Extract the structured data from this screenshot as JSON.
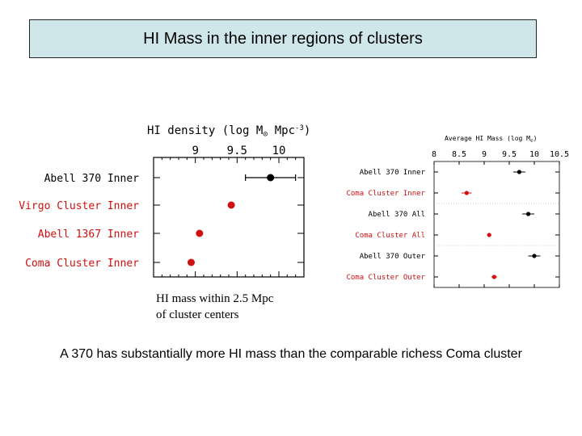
{
  "slide": {
    "title": "HI Mass in the inner regions of clusters",
    "caption_line1": "HI mass within 2.5 Mpc",
    "caption_line2": "of cluster centers",
    "conclusion": "A 370 has substantially more HI mass than the comparable richess Coma cluster"
  },
  "colors": {
    "black": "#000000",
    "red": "#d01010",
    "title_bg": "#cfe7ea"
  },
  "chart_data": [
    {
      "type": "scatter",
      "xlabel_parts": [
        "HI density  (log M",
        "⊙",
        "  Mpc",
        "-3",
        ")"
      ],
      "x_ticks": [
        "9",
        "9.5",
        "10"
      ],
      "x_tick_values": [
        9,
        9.5,
        10
      ],
      "xlim": [
        8.5,
        10.3
      ],
      "grid": false,
      "categories": [
        "Abell 370 Inner",
        "Virgo Cluster Inner",
        "Abell 1367 Inner",
        "Coma Cluster Inner"
      ],
      "values": [
        9.9,
        9.43,
        9.05,
        8.95
      ],
      "errors": [
        0.3,
        0,
        0,
        0
      ],
      "colors": [
        "#000000",
        "#d01010",
        "#d01010",
        "#d01010"
      ]
    },
    {
      "type": "scatter",
      "xlabel": "Average HI Mass (log M",
      "xlabel_sub": "⊙",
      "xlabel_close": ")",
      "x_ticks": [
        "8",
        "8.5",
        "9",
        "9.5",
        "10",
        "10.5"
      ],
      "x_tick_values": [
        8,
        8.5,
        9,
        9.5,
        10,
        10.5
      ],
      "xlim": [
        8,
        10.5
      ],
      "grid": false,
      "categories": [
        "Abell 370 Inner",
        "Coma Cluster Inner",
        "Abell 370 All",
        "Coma Cluster All",
        "Abell 370 Outer",
        "Coma Cluster Outer"
      ],
      "values": [
        9.7,
        8.65,
        9.88,
        9.1,
        10.0,
        9.2
      ],
      "errors": [
        0.12,
        0.1,
        0.12,
        0.04,
        0.12,
        0.06
      ],
      "colors": [
        "#000000",
        "#d01010",
        "#000000",
        "#d01010",
        "#000000",
        "#d01010"
      ]
    }
  ]
}
